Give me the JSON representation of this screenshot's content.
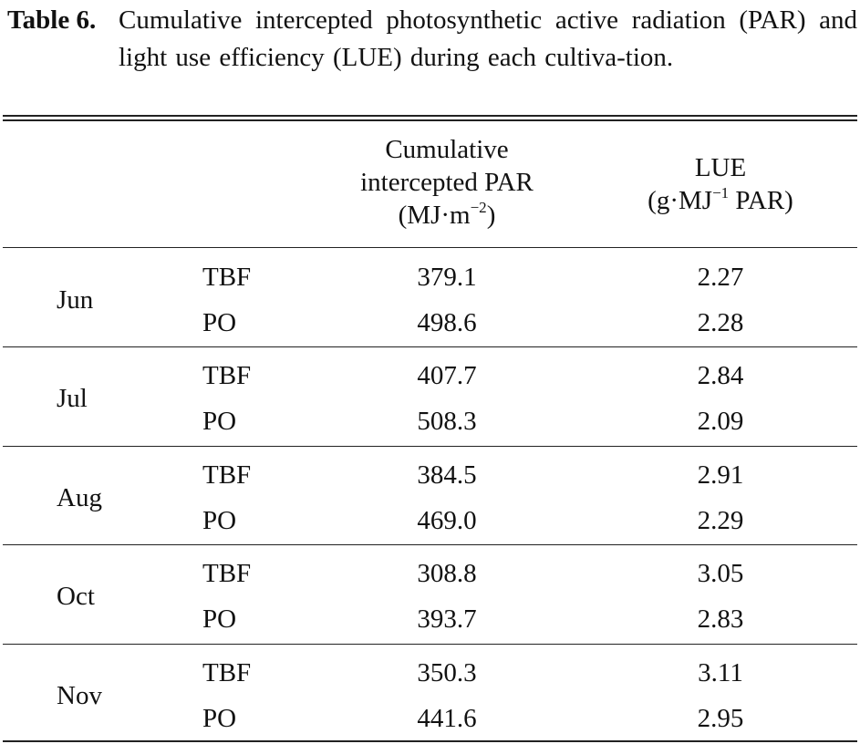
{
  "caption": {
    "label": "Table 6.",
    "text": "Cumulative intercepted photosynthetic active radiation (PAR) and light use efficiency (LUE) during each cultiva-tion."
  },
  "headers": {
    "par_line1": "Cumulative",
    "par_line2": "intercepted PAR",
    "par_unit_a": "(MJ·m",
    "par_unit_sup": "−2",
    "par_unit_b": ")",
    "lue_line1": "LUE",
    "lue_unit_a": "(g·MJ",
    "lue_unit_sup": "−1",
    "lue_unit_b": " PAR)"
  },
  "groups": [
    {
      "month": "Jun",
      "rows": [
        {
          "treatment": "TBF",
          "par": "379.1",
          "lue": "2.27"
        },
        {
          "treatment": "PO",
          "par": "498.6",
          "lue": "2.28"
        }
      ]
    },
    {
      "month": "Jul",
      "rows": [
        {
          "treatment": "TBF",
          "par": "407.7",
          "lue": "2.84"
        },
        {
          "treatment": "PO",
          "par": "508.3",
          "lue": "2.09"
        }
      ]
    },
    {
      "month": "Aug",
      "rows": [
        {
          "treatment": "TBF",
          "par": "384.5",
          "lue": "2.91"
        },
        {
          "treatment": "PO",
          "par": "469.0",
          "lue": "2.29"
        }
      ]
    },
    {
      "month": "Oct",
      "rows": [
        {
          "treatment": "TBF",
          "par": "308.8",
          "lue": "3.05"
        },
        {
          "treatment": "PO",
          "par": "393.7",
          "lue": "2.83"
        }
      ]
    },
    {
      "month": "Nov",
      "rows": [
        {
          "treatment": "TBF",
          "par": "350.3",
          "lue": "3.11"
        },
        {
          "treatment": "PO",
          "par": "441.6",
          "lue": "2.95"
        }
      ]
    }
  ]
}
